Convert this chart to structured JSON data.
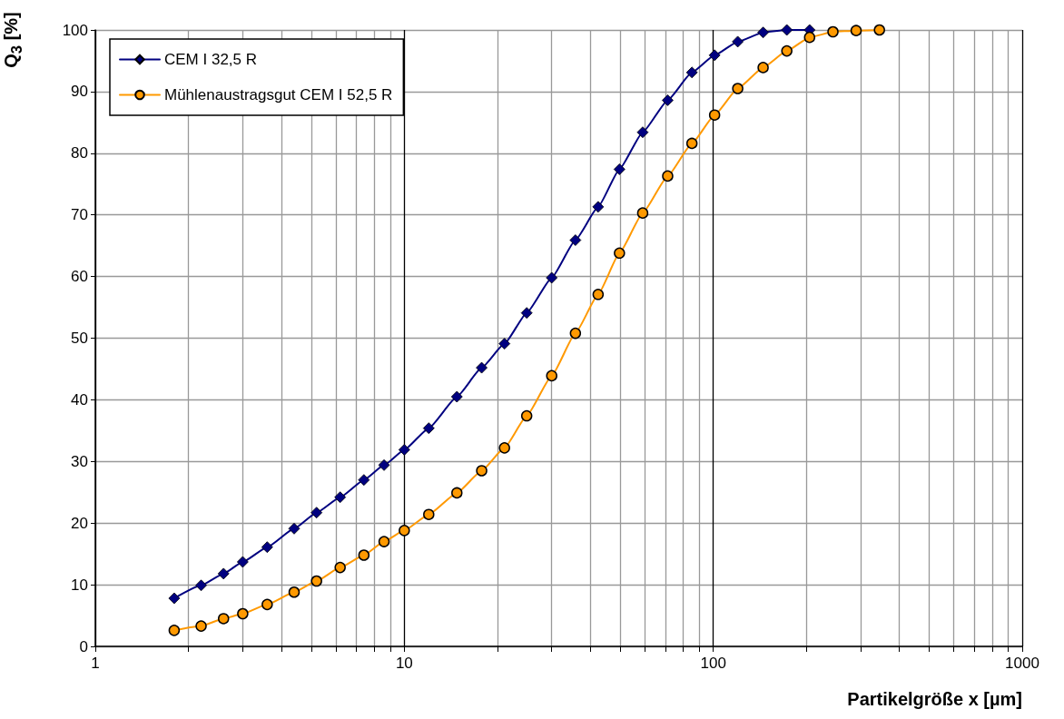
{
  "chart_data": {
    "type": "line",
    "xlabel": "Partikelgröße x [µm]",
    "ylabel": "Q$_{3}$ [%]",
    "log": "x",
    "xlim": [
      1,
      1000
    ],
    "xticks": [
      1,
      10,
      100,
      1000
    ],
    "ylim": [
      0,
      100
    ],
    "yticks": [
      0,
      10,
      20,
      30,
      40,
      50,
      60,
      70,
      80,
      90,
      100
    ],
    "grid": true,
    "legend": "top left",
    "line_style": "solid",
    "x": [
      1.8,
      2.2,
      2.6,
      3,
      3.6,
      4.4,
      5.2,
      6.2,
      7.4,
      8.6,
      10,
      12,
      14.8,
      17.8,
      21.1,
      24.9,
      30,
      35.8,
      42.4,
      49.7,
      59.1,
      71.2,
      85.3,
      101,
      120,
      145,
      173,
      205,
      244,
      290,
      345
    ],
    "series": [
      {
        "name": "CEM I 32,5 R",
        "color": "#000080",
        "marker": "diamond",
        "values": [
          7.8,
          9.9,
          11.8,
          13.7,
          16.1,
          19.1,
          21.7,
          24.2,
          27.0,
          29.4,
          31.9,
          35.4,
          40.5,
          45.2,
          49.1,
          54.1,
          59.8,
          65.9,
          71.3,
          77.4,
          83.4,
          88.6,
          93.1,
          95.9,
          98.1,
          99.6,
          100,
          100,
          null,
          null,
          null
        ]
      },
      {
        "name": "Mühlenaustragsgut CEM I 52,5 R",
        "color": "#ff9900",
        "marker": "circle",
        "values": [
          2.6,
          3.3,
          4.5,
          5.3,
          6.8,
          8.8,
          10.6,
          12.8,
          14.8,
          17.0,
          18.8,
          21.4,
          24.9,
          28.5,
          32.2,
          37.4,
          43.9,
          50.8,
          57.1,
          63.8,
          70.3,
          76.3,
          81.6,
          86.2,
          90.5,
          93.9,
          96.6,
          98.8,
          99.7,
          99.9,
          100
        ]
      }
    ]
  }
}
